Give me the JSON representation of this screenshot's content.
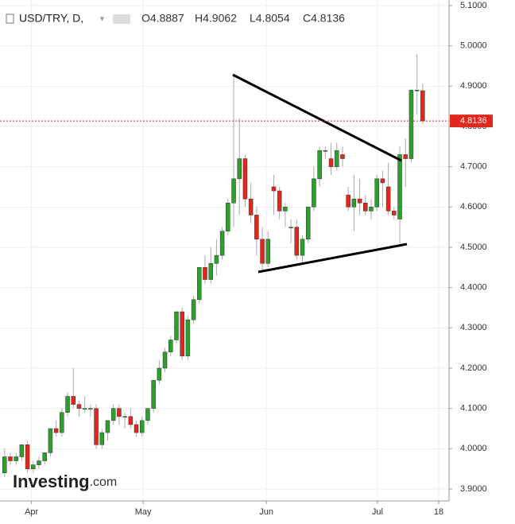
{
  "chart_data": {
    "type": "candlestick",
    "symbol": "USD/TRY, D,",
    "ohlc_labels": [
      "O4.8887",
      "H4.9062",
      "L4.8054",
      "C4.8136"
    ],
    "watermark": "Investing",
    "watermark_suffix": ".com",
    "last_price": {
      "value": 4.8136,
      "label": "4.8136"
    },
    "up_color": "#2ca02c",
    "down_color": "#e0271d",
    "open": [
      3.94,
      3.98,
      3.97,
      3.98,
      4.01,
      3.95,
      3.96,
      3.97,
      3.99,
      4.05,
      4.04,
      4.09,
      4.13,
      4.11,
      4.1,
      4.1,
      4.1,
      4.01,
      4.04,
      4.07,
      4.1,
      4.08,
      4.08,
      4.06,
      4.04,
      4.07,
      4.1,
      4.17,
      4.2,
      4.24,
      4.27,
      4.34,
      4.23,
      4.32,
      4.37,
      4.45,
      4.42,
      4.46,
      4.48,
      4.54,
      4.61,
      4.67,
      4.72,
      4.62,
      4.58,
      4.52,
      4.46,
      4.65,
      4.64,
      4.59,
      4.55,
      4.55,
      4.48,
      4.52,
      4.6,
      4.67,
      4.74,
      4.72,
      4.7,
      4.73,
      4.63,
      4.6,
      4.62,
      4.61,
      4.59,
      4.6,
      4.67,
      4.65,
      4.59,
      4.57,
      4.73,
      4.72,
      4.89,
      4.8887
    ],
    "high": [
      4.0,
      3.99,
      3.99,
      4.01,
      4.02,
      3.97,
      3.98,
      3.99,
      4.05,
      4.07,
      4.1,
      4.14,
      4.2,
      4.12,
      4.13,
      4.11,
      4.11,
      4.05,
      4.07,
      4.11,
      4.11,
      4.09,
      4.1,
      4.07,
      4.08,
      4.1,
      4.17,
      4.22,
      4.25,
      4.28,
      4.34,
      4.35,
      4.33,
      4.38,
      4.45,
      4.48,
      4.5,
      4.52,
      4.55,
      4.62,
      4.93,
      4.82,
      4.73,
      4.66,
      4.6,
      4.55,
      4.54,
      4.68,
      4.65,
      4.61,
      4.57,
      4.57,
      4.53,
      4.6,
      4.7,
      4.75,
      4.75,
      4.76,
      4.76,
      4.75,
      4.65,
      4.68,
      4.67,
      4.63,
      4.62,
      4.68,
      4.69,
      4.71,
      4.6,
      4.75,
      4.77,
      4.88,
      4.98,
      4.9062
    ],
    "low": [
      3.93,
      3.96,
      3.96,
      3.97,
      3.94,
      3.94,
      3.95,
      3.96,
      3.98,
      4.03,
      4.03,
      4.08,
      4.1,
      4.08,
      4.09,
      4.08,
      4.0,
      4.0,
      4.02,
      4.06,
      4.06,
      4.05,
      4.05,
      4.03,
      4.03,
      4.06,
      4.09,
      4.16,
      4.19,
      4.23,
      4.26,
      4.22,
      4.22,
      4.31,
      4.36,
      4.41,
      4.41,
      4.43,
      4.47,
      4.53,
      4.55,
      4.58,
      4.6,
      4.56,
      4.48,
      4.44,
      4.45,
      4.58,
      4.57,
      4.55,
      4.51,
      4.47,
      4.46,
      4.51,
      4.59,
      4.65,
      4.72,
      4.68,
      4.69,
      4.7,
      4.59,
      4.54,
      4.58,
      4.58,
      4.57,
      4.59,
      4.6,
      4.58,
      4.57,
      4.51,
      4.65,
      4.71,
      4.83,
      4.8054
    ],
    "close": [
      3.98,
      3.97,
      3.98,
      4.01,
      3.95,
      3.96,
      3.97,
      3.99,
      4.05,
      4.04,
      4.09,
      4.13,
      4.11,
      4.1,
      4.1,
      4.1,
      4.01,
      4.04,
      4.07,
      4.1,
      4.08,
      4.08,
      4.06,
      4.04,
      4.07,
      4.1,
      4.17,
      4.2,
      4.24,
      4.27,
      4.34,
      4.23,
      4.32,
      4.37,
      4.45,
      4.42,
      4.46,
      4.48,
      4.54,
      4.61,
      4.67,
      4.72,
      4.62,
      4.58,
      4.52,
      4.46,
      4.52,
      4.64,
      4.59,
      4.6,
      4.55,
      4.48,
      4.52,
      4.6,
      4.67,
      4.74,
      4.74,
      4.7,
      4.74,
      4.72,
      4.6,
      4.62,
      4.61,
      4.59,
      4.6,
      4.67,
      4.66,
      4.59,
      4.58,
      4.73,
      4.72,
      4.89,
      4.89,
      4.8136
    ],
    "xlim": [
      -0.8,
      77.6
    ],
    "xticks": [
      {
        "value": 4.7,
        "label": "Apr"
      },
      {
        "value": 24.2,
        "label": "May"
      },
      {
        "value": 45.7,
        "label": "Jun"
      },
      {
        "value": 65.1,
        "label": "Jul"
      },
      {
        "value": 75.8,
        "label": "18"
      }
    ],
    "ylim": [
      3.8704,
      5.1138
    ],
    "yticks": [
      {
        "value": 3.9,
        "label": "3.9000"
      },
      {
        "value": 4.0,
        "label": "4.0000"
      },
      {
        "value": 4.1,
        "label": "4.1000"
      },
      {
        "value": 4.2,
        "label": "4.2000"
      },
      {
        "value": 4.3,
        "label": "4.3000"
      },
      {
        "value": 4.4,
        "label": "4.4000"
      },
      {
        "value": 4.5,
        "label": "4.5000"
      },
      {
        "value": 4.6,
        "label": "4.6000"
      },
      {
        "value": 4.7,
        "label": "4.7000"
      },
      {
        "value": 4.8,
        "label": "4.8000"
      },
      {
        "value": 4.9,
        "label": "4.9000"
      },
      {
        "value": 5.0,
        "label": "5.0000"
      },
      {
        "value": 5.1,
        "label": "5.1000"
      }
    ],
    "grid": true
  }
}
